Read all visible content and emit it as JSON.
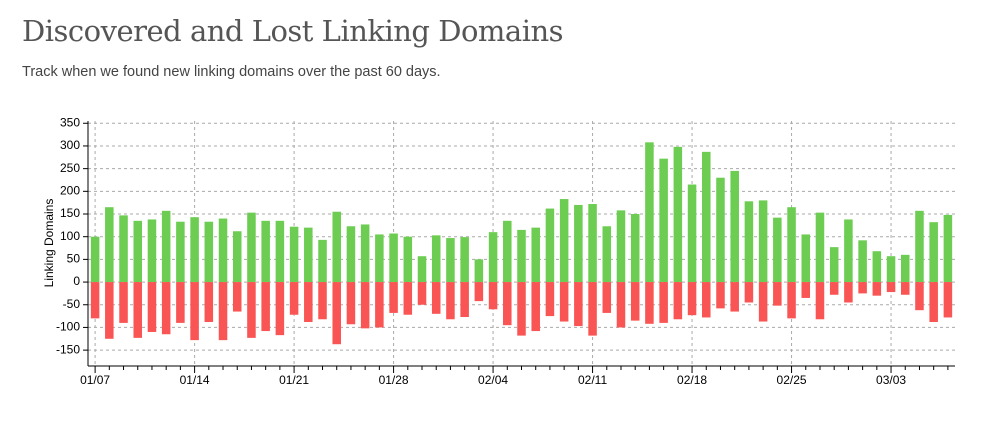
{
  "title": "Discovered and Lost Linking Domains",
  "subtitle": "Track when we found new linking domains over the past 60 days.",
  "chart_data": {
    "type": "bar",
    "stacked": false,
    "ylabel": "Linking Domains",
    "categories": [
      "01/07",
      null,
      null,
      null,
      null,
      null,
      null,
      "01/14",
      null,
      null,
      null,
      null,
      null,
      null,
      "01/21",
      null,
      null,
      null,
      null,
      null,
      null,
      "01/28",
      null,
      null,
      null,
      null,
      null,
      null,
      "02/04",
      null,
      null,
      null,
      null,
      null,
      null,
      "02/11",
      null,
      null,
      null,
      null,
      null,
      null,
      "02/18",
      null,
      null,
      null,
      null,
      null,
      null,
      "02/25",
      null,
      null,
      null,
      null,
      null,
      null,
      "03/03",
      null,
      null,
      null,
      null
    ],
    "series": [
      {
        "color": "#6dcd52",
        "values": [
          100,
          165,
          147,
          135,
          138,
          157,
          133,
          143,
          133,
          140,
          112,
          153,
          135,
          135,
          122,
          120,
          93,
          155,
          123,
          127,
          105,
          107,
          100,
          57,
          103,
          97,
          99,
          50,
          110,
          135,
          115,
          120,
          162,
          183,
          170,
          172,
          123,
          158,
          150,
          308,
          272,
          298,
          215,
          287,
          230,
          245,
          178,
          180,
          142,
          165,
          105,
          153,
          77,
          138,
          92,
          68,
          57,
          60,
          157,
          132,
          148
        ]
      },
      {
        "color": "#fa5555",
        "values": [
          -80,
          -125,
          -90,
          -123,
          -110,
          -115,
          -90,
          -128,
          -88,
          -128,
          -65,
          -123,
          -108,
          -117,
          -72,
          -88,
          -82,
          -137,
          -93,
          -102,
          -100,
          -68,
          -72,
          -50,
          -70,
          -82,
          -77,
          -42,
          -60,
          -95,
          -118,
          -108,
          -75,
          -87,
          -97,
          -118,
          -68,
          -100,
          -85,
          -92,
          -90,
          -82,
          -73,
          -78,
          -58,
          -65,
          -45,
          -87,
          -52,
          -80,
          -35,
          -82,
          -28,
          -45,
          -25,
          -30,
          -22,
          -28,
          -62,
          -88,
          -78
        ]
      }
    ],
    "ylim": [
      -185,
      355
    ],
    "yticks": [
      -150,
      -100,
      -50,
      0,
      50,
      100,
      150,
      200,
      250,
      300,
      350
    ],
    "grid": true
  }
}
